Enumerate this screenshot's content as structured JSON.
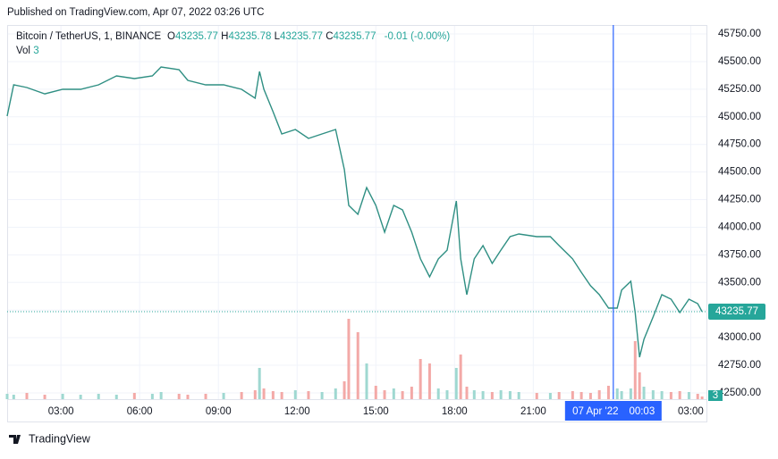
{
  "header": {
    "published": "Published on TradingView.com, Apr 07, 2022 03:26 UTC"
  },
  "footer": {
    "brand": "TradingView"
  },
  "chart_data": {
    "type": "line",
    "symbol": "Bitcoin / TetherUS, 1, BINANCE",
    "ohlc": {
      "o_label": "O",
      "open": 43235.77,
      "h_label": "H",
      "high": 43235.78,
      "l_label": "L",
      "low": 43235.77,
      "c_label": "C",
      "close": 43235.77,
      "change": "-0.01 (-0.00%)"
    },
    "volume_label": "Vol",
    "x": [
      57,
      72,
      102,
      143,
      184,
      225,
      266,
      307,
      348,
      389,
      409,
      450,
      470,
      511,
      552,
      593,
      624,
      634,
      644,
      665,
      685,
      716,
      746,
      777,
      808,
      828,
      838,
      859,
      879,
      900,
      920,
      941,
      961,
      982,
      1002,
      1023,
      1043,
      1063,
      1084,
      1094,
      1108,
      1125,
      1145,
      1166,
      1186,
      1207,
      1227,
      1268,
      1299,
      1319,
      1350,
      1370,
      1391,
      1411,
      1432,
      1452,
      1462,
      1483,
      1493,
      1503,
      1513,
      1534,
      1554,
      1575,
      1595,
      1616,
      1636,
      1646
    ],
    "series": [
      {
        "name": "Bitcoin / TetherUS",
        "color": "#2f8f83",
        "values": [
          45006,
          45289,
          45265,
          45208,
          45249,
          45249,
          45289,
          45370,
          45346,
          45370,
          45451,
          45427,
          45330,
          45289,
          45289,
          45249,
          45168,
          45410,
          45249,
          45047,
          44845,
          44885,
          44804,
          44845,
          44885,
          44521,
          44198,
          44117,
          44359,
          44198,
          43955,
          44198,
          44157,
          43955,
          43713,
          43551,
          43713,
          43793,
          44238,
          43713,
          43389,
          43713,
          43834,
          43672,
          43793,
          43915,
          43939,
          43915,
          43915,
          43834,
          43713,
          43591,
          43470,
          43389,
          43268,
          43268,
          43430,
          43510,
          43227,
          42823,
          42985,
          43187,
          43389,
          43349,
          43227,
          43349,
          43308,
          43235.77
        ]
      }
    ],
    "volume": {
      "up_color": "#9fd8d1",
      "down_color": "#f3a9a7",
      "ylim": [
        0,
        100
      ],
      "values": [
        6,
        5,
        7,
        5,
        6,
        5,
        6,
        5,
        7,
        6,
        8,
        6,
        5,
        6,
        7,
        8,
        10,
        35,
        12,
        9,
        8,
        10,
        9,
        8,
        12,
        20,
        90,
        75,
        40,
        15,
        10,
        12,
        9,
        14,
        45,
        40,
        12,
        10,
        35,
        50,
        14,
        10,
        9,
        8,
        10,
        9,
        8,
        7,
        7,
        8,
        9,
        8,
        7,
        10,
        15,
        12,
        9,
        12,
        65,
        30,
        14,
        10,
        9,
        8,
        9,
        8,
        6,
        3
      ]
    },
    "xlim": [
      57,
      1656
    ],
    "ylim": [
      42443,
      45815
    ],
    "xticks": [
      {
        "value": 180,
        "label": "03:00"
      },
      {
        "value": 360,
        "label": "06:00"
      },
      {
        "value": 540,
        "label": "09:00"
      },
      {
        "value": 720,
        "label": "12:00"
      },
      {
        "value": 900,
        "label": "15:00"
      },
      {
        "value": 1080,
        "label": "18:00"
      },
      {
        "value": 1260,
        "label": "21:00"
      },
      {
        "value": 1620,
        "label": "03:00"
      }
    ],
    "yticks": [
      {
        "value": 42500,
        "label": "42500.00"
      },
      {
        "value": 42750,
        "label": "42750.00"
      },
      {
        "value": 43000,
        "label": "43000.00"
      },
      {
        "value": 43250,
        "label": "43250.00"
      },
      {
        "value": 43500,
        "label": "43500.00"
      },
      {
        "value": 43750,
        "label": "43750.00"
      },
      {
        "value": 44000,
        "label": "44000.00"
      },
      {
        "value": 44250,
        "label": "44250.00"
      },
      {
        "value": 44500,
        "label": "44500.00"
      },
      {
        "value": 44750,
        "label": "44750.00"
      },
      {
        "value": 45000,
        "label": "45000.00"
      },
      {
        "value": 45250,
        "label": "45250.00"
      },
      {
        "value": 45500,
        "label": "45500.00"
      },
      {
        "value": 45750,
        "label": "45750.00"
      }
    ],
    "grid": true,
    "crosshair": {
      "x": 1443,
      "date": "07 Apr '22",
      "time": "00:03",
      "color": "#2962ff"
    }
  }
}
